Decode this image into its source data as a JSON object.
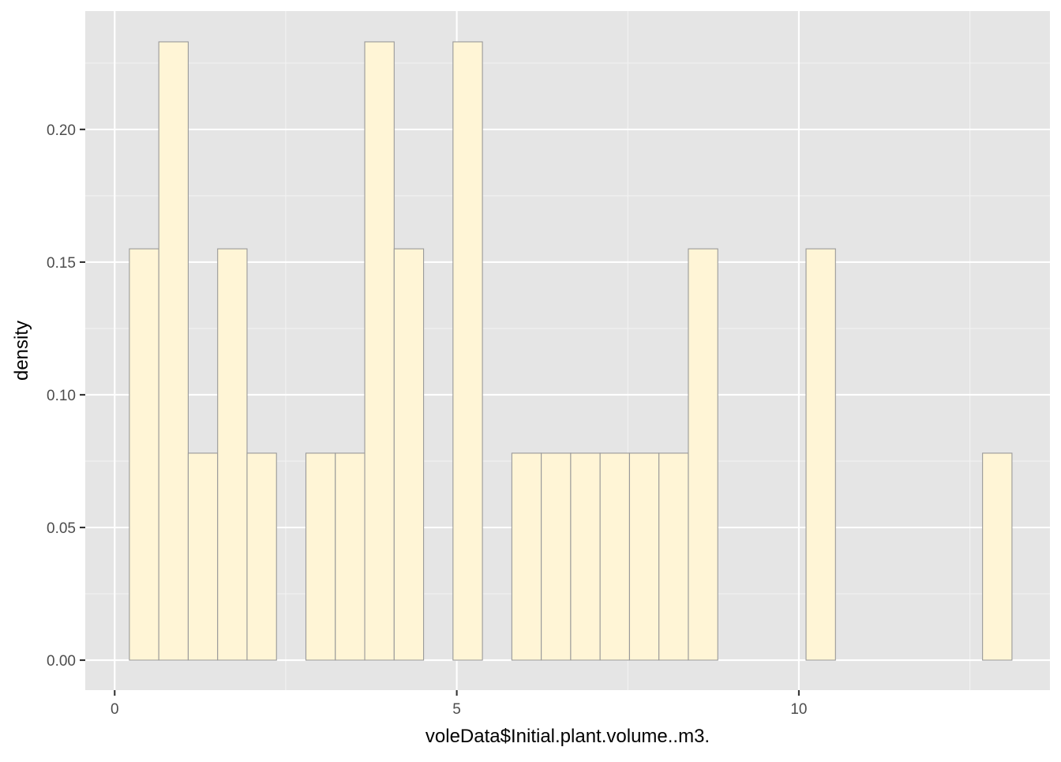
{
  "chart_data": {
    "type": "bar",
    "subtype": "histogram",
    "xlabel": "voleData$Initial.plant.volume..m3.",
    "ylabel": "density",
    "xlim": [
      -0.43,
      13.67
    ],
    "ylim": [
      -0.0113,
      0.2446
    ],
    "bin_width": 0.43,
    "first_bin_start": 0.215,
    "x_ticks": [
      0,
      5,
      10
    ],
    "x_tick_labels": [
      "0",
      "5",
      "10"
    ],
    "x_minor_ticks": [
      2.5,
      7.5,
      12.5
    ],
    "y_ticks": [
      0.0,
      0.05,
      0.1,
      0.15,
      0.2
    ],
    "y_tick_labels": [
      "0.00",
      "0.05",
      "0.10",
      "0.15",
      "0.20"
    ],
    "y_minor_ticks": [
      0.025,
      0.075,
      0.125,
      0.175,
      0.225
    ],
    "values": [
      0.155,
      0.233,
      0.078,
      0.155,
      0.078,
      0,
      0.078,
      0.078,
      0.233,
      0.155,
      0,
      0.233,
      0,
      0.078,
      0.078,
      0.078,
      0.078,
      0.078,
      0.078,
      0.155,
      0,
      0,
      0,
      0.155,
      0,
      0,
      0,
      0,
      0,
      0.078
    ],
    "grid": true,
    "colors": {
      "panel_background": "#e5e5e5",
      "grid_major": "#ffffff",
      "grid_minor": "#f2f2f2",
      "bar_fill": "#fff5d6",
      "bar_stroke": "#999999",
      "tick_mark": "#333333"
    }
  }
}
